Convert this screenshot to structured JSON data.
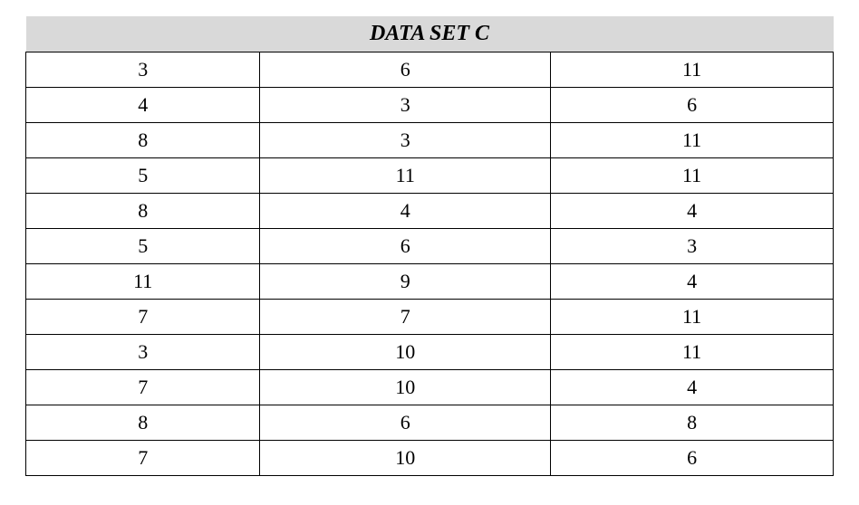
{
  "table": {
    "title": "DATA SET C",
    "title_bg": "#d9d9d9",
    "title_fontsize": 24,
    "title_fontstyle": "italic-bold",
    "cell_fontsize": 22,
    "font_family": "Times New Roman",
    "border_color": "#000000",
    "border_width": 1.5,
    "background_color": "#ffffff",
    "column_widths_pct": [
      29,
      36,
      35
    ],
    "rows": [
      [
        3,
        6,
        11
      ],
      [
        4,
        3,
        6
      ],
      [
        8,
        3,
        11
      ],
      [
        5,
        11,
        11
      ],
      [
        8,
        4,
        4
      ],
      [
        5,
        6,
        3
      ],
      [
        11,
        9,
        4
      ],
      [
        7,
        7,
        11
      ],
      [
        3,
        10,
        11
      ],
      [
        7,
        10,
        4
      ],
      [
        8,
        6,
        8
      ],
      [
        7,
        10,
        6
      ]
    ]
  }
}
